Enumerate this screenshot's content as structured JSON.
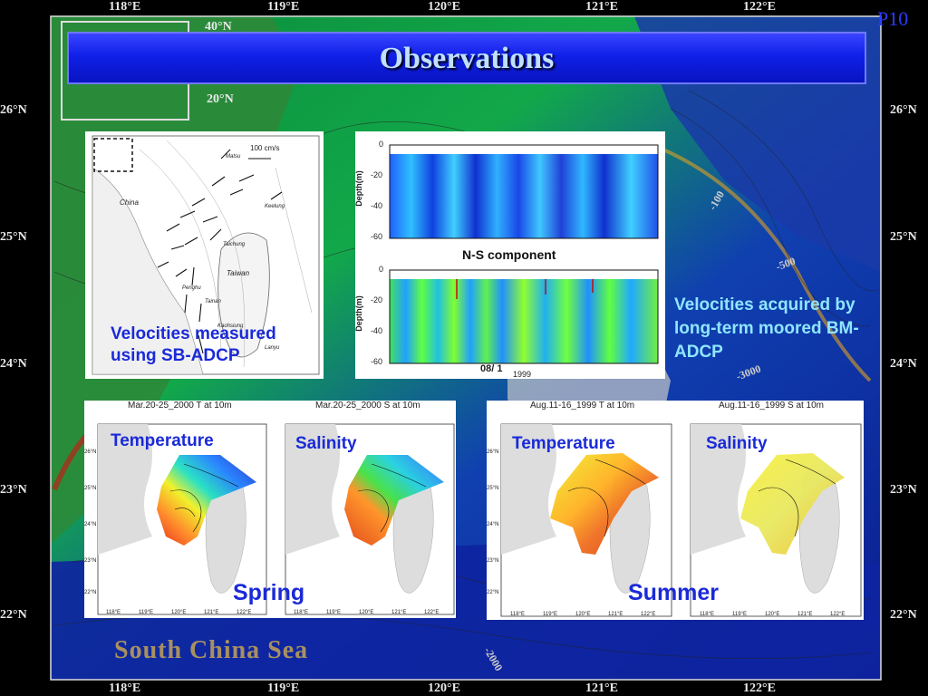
{
  "slide": {
    "title": "Observations",
    "page_label": "P10",
    "accent_color": "#1020e8",
    "overlay_label_color": "#1a2ad8",
    "cyan_label_color": "#8fe6ff"
  },
  "background_map": {
    "longitude_labels": [
      "118°E",
      "119°E",
      "120°E",
      "121°E",
      "122°E"
    ],
    "latitude_labels": [
      "26°N",
      "25°N",
      "24°N",
      "23°N",
      "22°N"
    ],
    "inset_labels": [
      "40°N",
      "20°N"
    ],
    "sea_label": "South China Sea",
    "depth_labels": [
      "-100",
      "-500",
      "-2000",
      "-3000"
    ]
  },
  "sb_adcp_panel": {
    "label": "Velocities measured using SB-ADCP",
    "map_labels": [
      "China",
      "Taiwan",
      "Taichung",
      "Keelung",
      "Matsu",
      "Penghu",
      "Tainan",
      "Kaohsiung",
      "Lanyu"
    ],
    "scale_label": "100 cm/s"
  },
  "bm_adcp_panel": {
    "label": "Velocities acquired by long-term moored BM-ADCP",
    "component_label": "N-S component",
    "ylabel": "Depth(m)",
    "depth_ticks": [
      "0",
      "-20",
      "-40",
      "-60"
    ],
    "time_label": "08/ 1",
    "year_label": "1999"
  },
  "spring_panel": {
    "season_label": "Spring",
    "left_title": "Mar.20-25_2000 T at 10m",
    "right_title": "Mar.20-25_2000 S at 10m",
    "left_label": "Temperature",
    "right_label": "Salinity",
    "lat_ticks": [
      "26°N",
      "25°N",
      "24°N",
      "23°N",
      "22°N"
    ],
    "lon_ticks": [
      "118°E",
      "119°E",
      "120°E",
      "121°E",
      "122°E"
    ]
  },
  "summer_panel": {
    "season_label": "Summer",
    "left_title": "Aug.11-16_1999 T at 10m",
    "right_title": "Aug.11-16_1999 S at 10m",
    "left_label": "Temperature",
    "right_label": "Salinity",
    "lat_ticks": [
      "26°N",
      "25°N",
      "24°N",
      "23°N",
      "22°N"
    ],
    "lon_ticks": [
      "118°E",
      "119°E",
      "120°E",
      "121°E",
      "122°E"
    ]
  }
}
